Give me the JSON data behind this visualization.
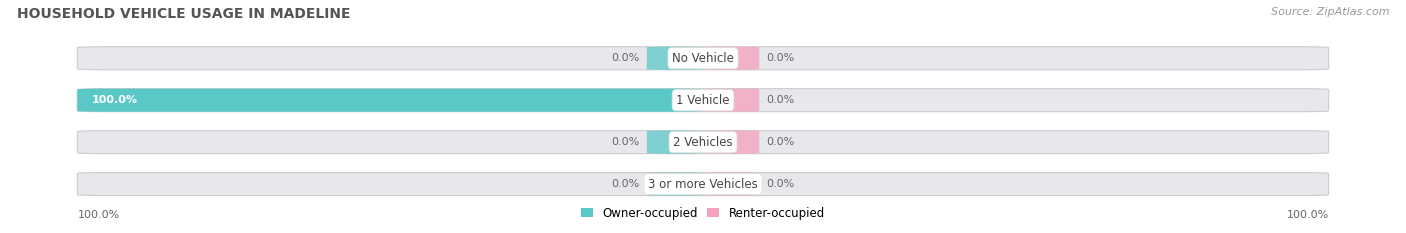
{
  "title": "HOUSEHOLD VEHICLE USAGE IN MADELINE",
  "source": "Source: ZipAtlas.com",
  "categories": [
    "No Vehicle",
    "1 Vehicle",
    "2 Vehicles",
    "3 or more Vehicles"
  ],
  "owner_values": [
    0.0,
    100.0,
    0.0,
    0.0
  ],
  "renter_values": [
    0.0,
    0.0,
    0.0,
    0.0
  ],
  "owner_color": "#5BC8C8",
  "renter_color": "#F5A0BE",
  "bar_bg_color": "#E8E8EC",
  "title_color": "#555555",
  "source_color": "#999999",
  "label_color": "#444444",
  "pct_color": "#666666",
  "owner_pct_color": "#FFFFFF",
  "title_fontsize": 10,
  "source_fontsize": 8,
  "label_fontsize": 8.5,
  "pct_fontsize": 8,
  "legend_fontsize": 8.5,
  "figsize": [
    14.06,
    2.33
  ],
  "dpi": 100,
  "bottom_left_label": "100.0%",
  "bottom_right_label": "100.0%"
}
